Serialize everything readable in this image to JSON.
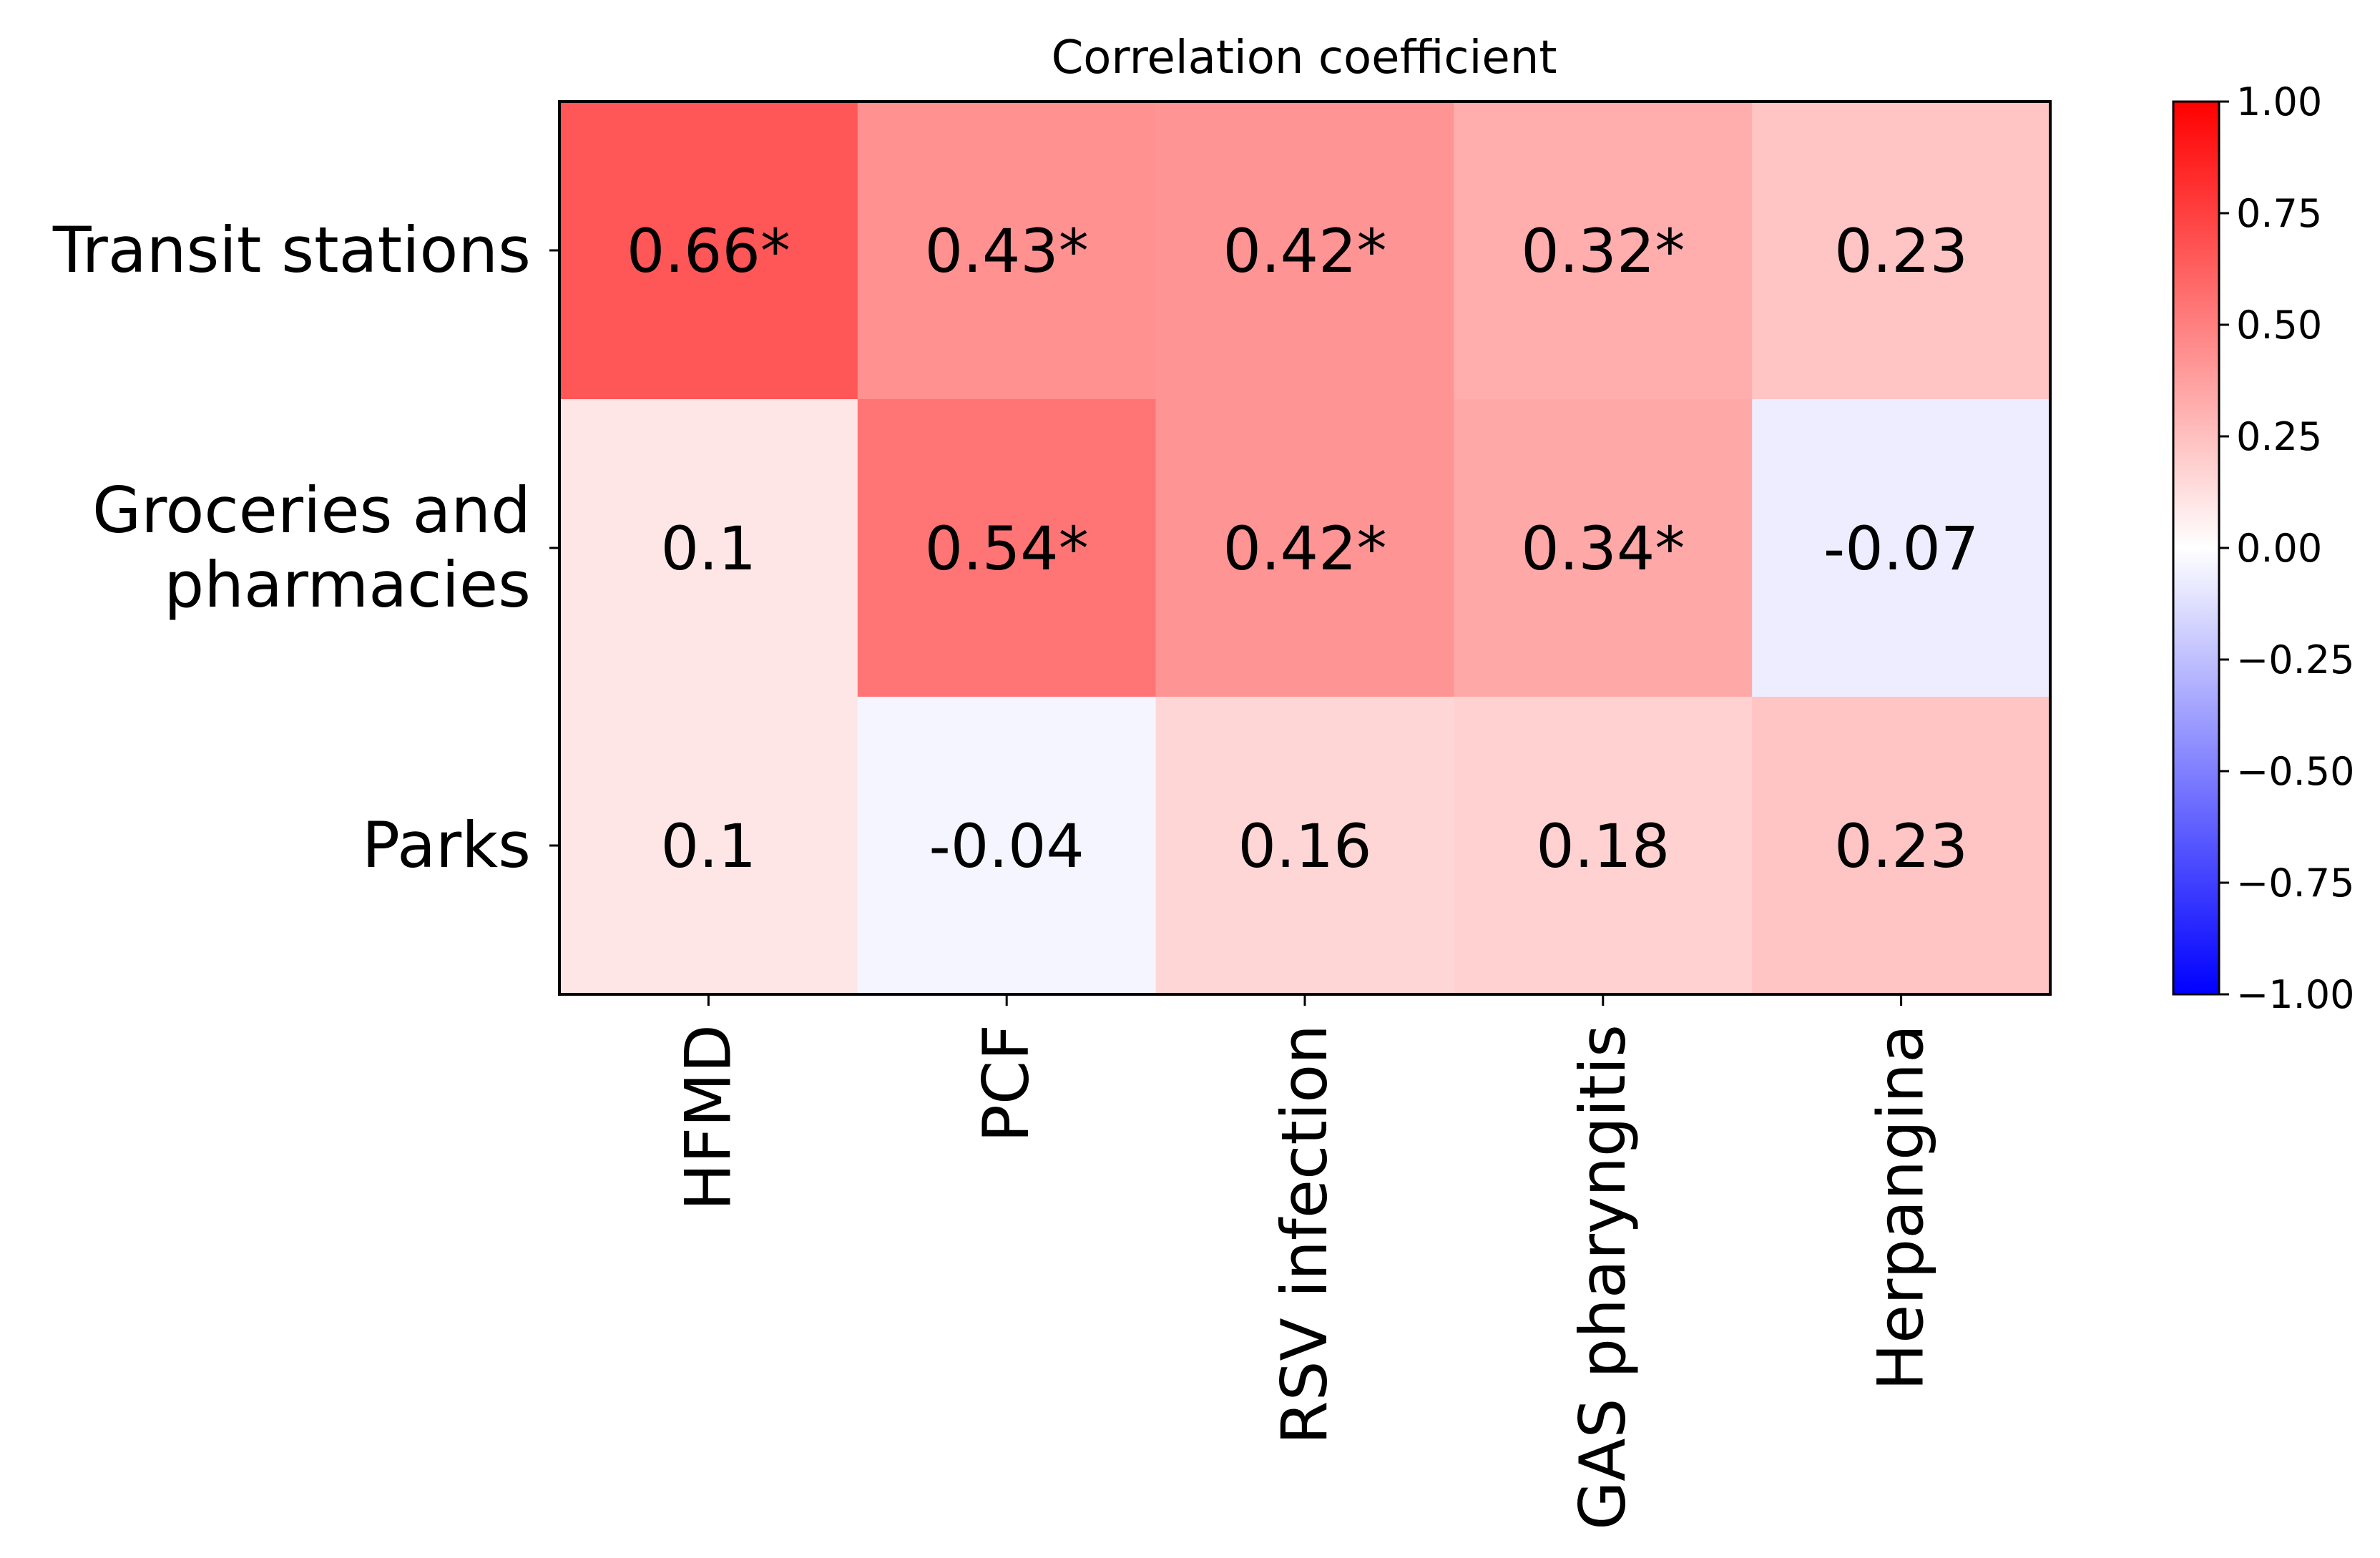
{
  "chart_data": {
    "type": "heatmap",
    "title": "Correlation coefficient",
    "rows": [
      "Transit stations",
      "Groceries and pharmacies",
      "Parks"
    ],
    "row_label_lines": [
      [
        "Transit stations"
      ],
      [
        "Groceries and",
        "pharmacies"
      ],
      [
        "Parks"
      ]
    ],
    "columns": [
      "HFMD",
      "PCF",
      "RSV infection",
      "GAS pharyngitis",
      "Herpangina"
    ],
    "values": [
      [
        0.66,
        0.43,
        0.42,
        0.32,
        0.23
      ],
      [
        0.1,
        0.54,
        0.42,
        0.34,
        -0.07
      ],
      [
        0.1,
        -0.04,
        0.16,
        0.18,
        0.23
      ]
    ],
    "labels": [
      [
        "0.66*",
        "0.43*",
        "0.42*",
        "0.32*",
        "0.23"
      ],
      [
        "0.1",
        "0.54*",
        "0.42*",
        "0.34*",
        "-0.07"
      ],
      [
        "0.1",
        "-0.04",
        "0.16",
        "0.18",
        "0.23"
      ]
    ],
    "colorbar": {
      "range": [
        -1.0,
        1.0
      ],
      "ticks": [
        "1.00",
        "0.75",
        "0.50",
        "0.25",
        "0.00",
        "−0.25",
        "−0.50",
        "−0.75",
        "−1.00"
      ],
      "tick_values": [
        1.0,
        0.75,
        0.5,
        0.25,
        0.0,
        -0.25,
        -0.5,
        -0.75,
        -1.0
      ],
      "colormap": "bwr",
      "low_color": "#0000ff",
      "mid_color": "#ffffff",
      "high_color": "#ff0000"
    },
    "significance_marker": "*"
  }
}
